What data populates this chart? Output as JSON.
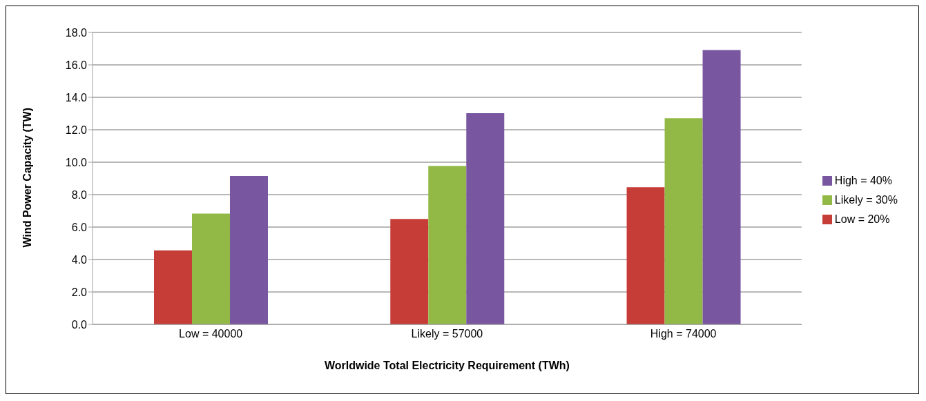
{
  "chart_data": {
    "type": "bar",
    "xlabel": "Worldwide Total Electricity Requirement (TWh)",
    "ylabel": "Wind Power Capacity  (TW)",
    "categories": [
      "Low = 40000",
      "Likely = 57000",
      "High = 74000"
    ],
    "series": [
      {
        "name": "Low = 20%",
        "color": "#c63d37",
        "values": [
          4.56,
          6.5,
          8.46
        ]
      },
      {
        "name": "Likely = 30%",
        "color": "#92b946",
        "values": [
          6.83,
          9.77,
          12.71
        ]
      },
      {
        "name": "High = 40%",
        "color": "#7856a0",
        "values": [
          9.15,
          13.02,
          16.92
        ]
      }
    ],
    "ylim": [
      0,
      18
    ],
    "yticks": [
      {
        "value": 0,
        "label": "0.0"
      },
      {
        "value": 2,
        "label": "2.0"
      },
      {
        "value": 4,
        "label": "4.0"
      },
      {
        "value": 6,
        "label": "6.0"
      },
      {
        "value": 8,
        "label": "8.0"
      },
      {
        "value": 10,
        "label": "10.0"
      },
      {
        "value": 12,
        "label": "12.0"
      },
      {
        "value": 14,
        "label": "14.0"
      },
      {
        "value": 16,
        "label": "16.0"
      },
      {
        "value": 18,
        "label": "18.0"
      }
    ],
    "grid": "y",
    "legend": "right"
  }
}
